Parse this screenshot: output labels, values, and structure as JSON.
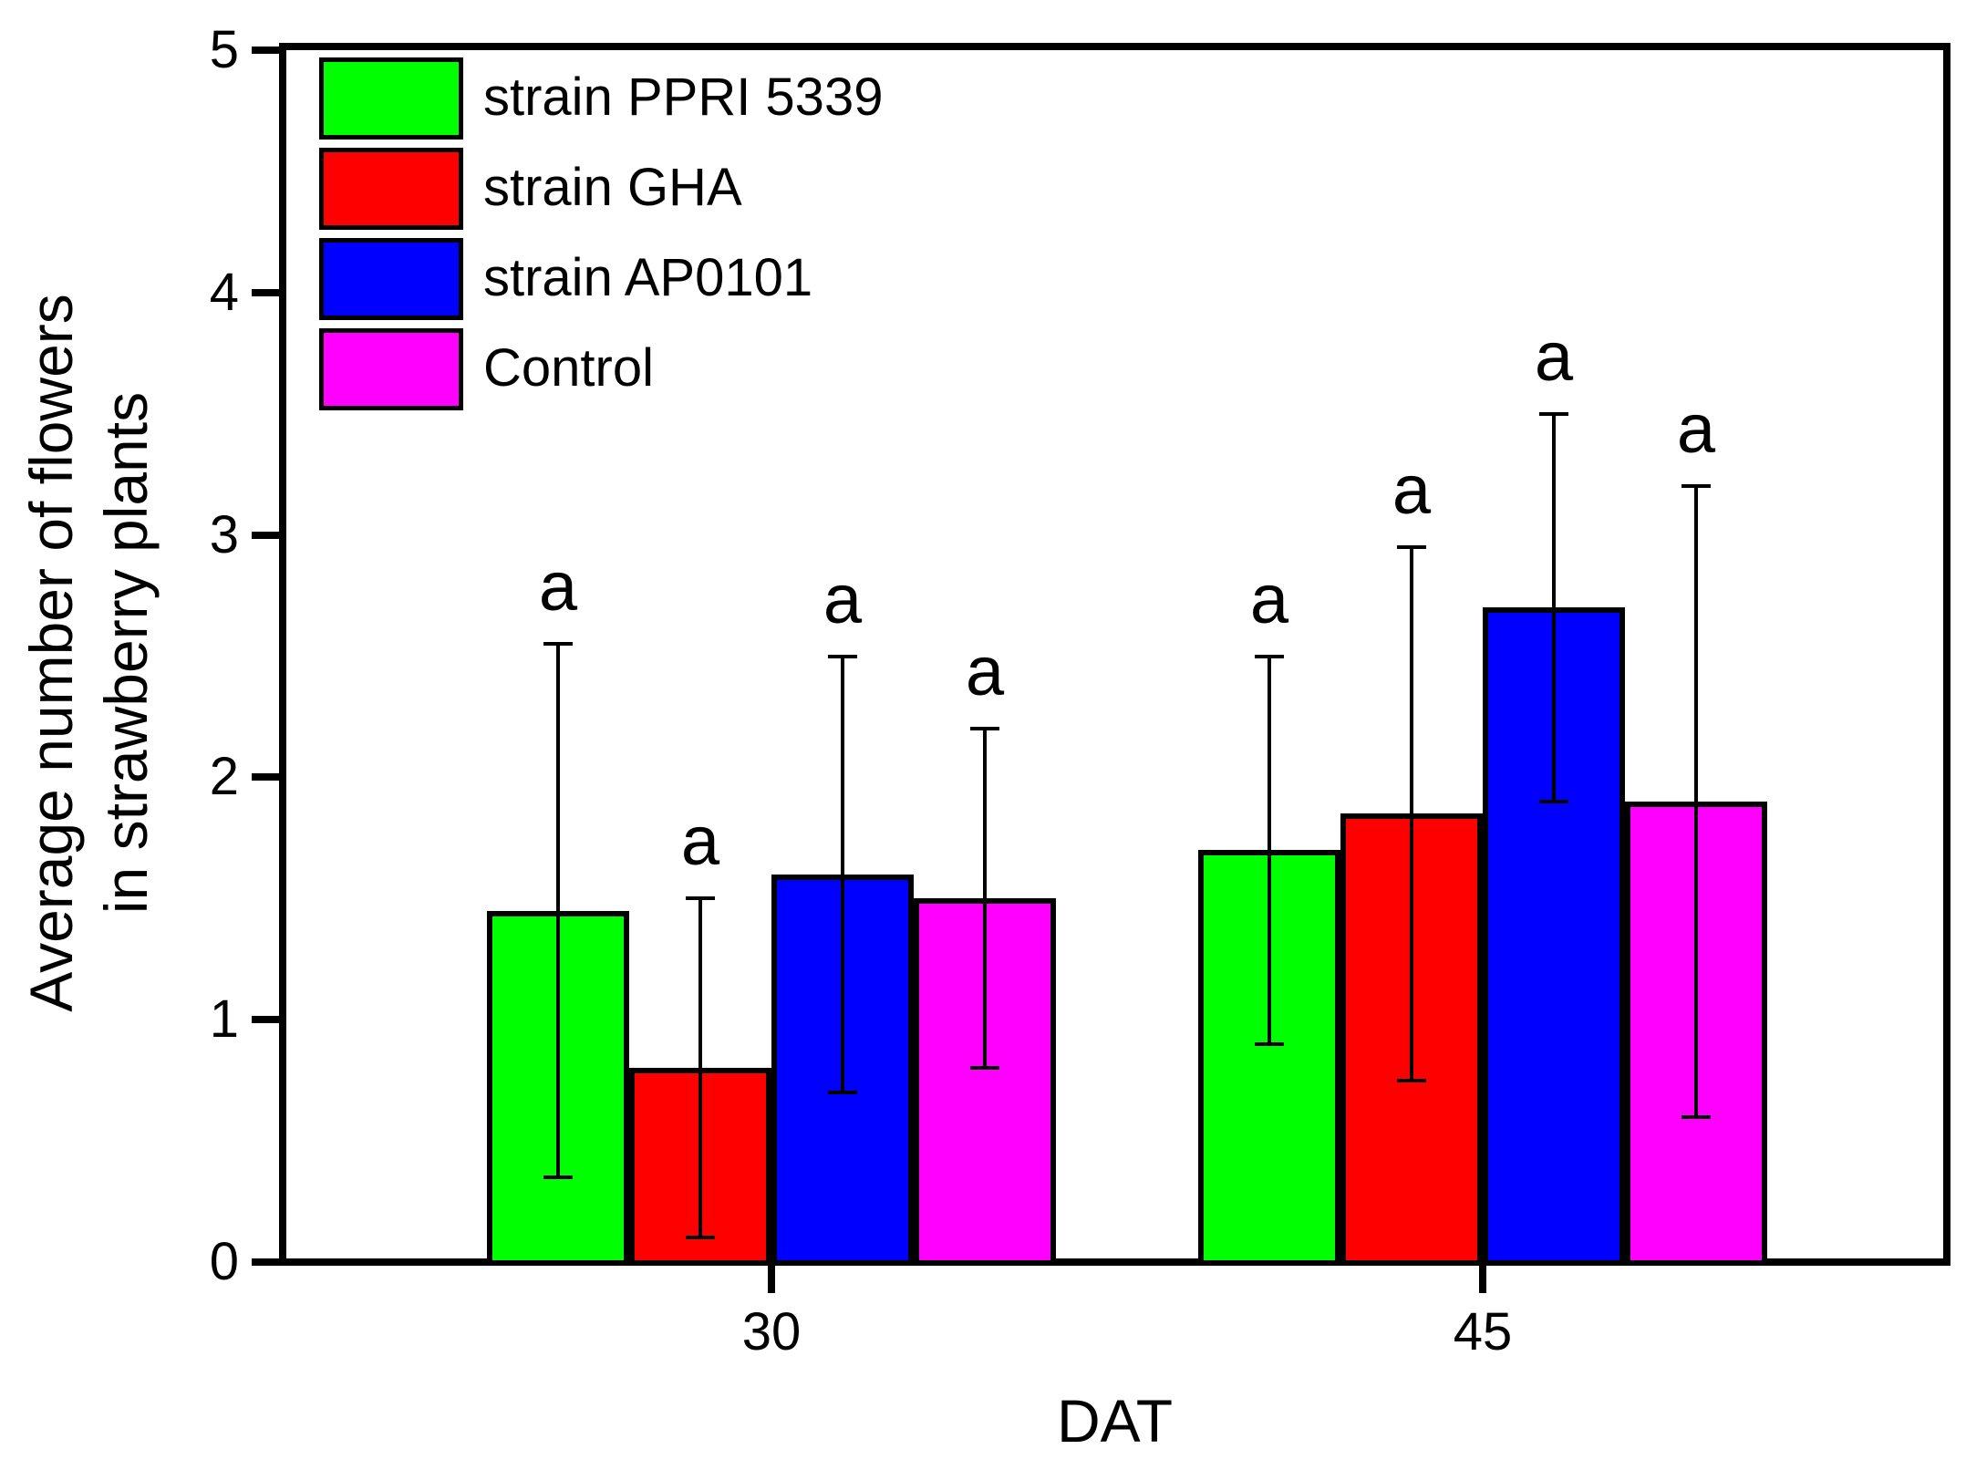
{
  "figure": {
    "background_color": "#ffffff",
    "axes": {
      "y": {
        "label_line1": "Average number of flowers",
        "label_line2": "in strawberry plants",
        "tick_labels": [
          "0",
          "1",
          "2",
          "3",
          "4",
          "5"
        ],
        "min": 0,
        "max": 5
      },
      "x": {
        "label": "DAT",
        "tick_labels": [
          "30",
          "45"
        ]
      }
    },
    "significance_letter": "a"
  },
  "chart_data": {
    "type": "bar",
    "title": "",
    "xlabel": "DAT",
    "ylabel": "Average number of flowers in strawberry plants",
    "ylim": [
      0,
      5
    ],
    "yticks": [
      0,
      1,
      2,
      3,
      4,
      5
    ],
    "grid": false,
    "legend_position": "top-left",
    "categories": [
      "30",
      "45"
    ],
    "series": [
      {
        "name": "strain PPRI 5339",
        "color": "#00ff00",
        "values": [
          1.45,
          1.7
        ],
        "error_bar_lower": [
          0.35,
          0.9
        ],
        "error_bar_upper": [
          2.55,
          2.5
        ],
        "bar_labels": [
          "a",
          "a"
        ]
      },
      {
        "name": "strain GHA",
        "color": "#ff0000",
        "values": [
          0.8,
          1.85
        ],
        "error_bar_lower": [
          0.1,
          0.75
        ],
        "error_bar_upper": [
          1.5,
          2.95
        ],
        "bar_labels": [
          "a",
          "a"
        ]
      },
      {
        "name": "strain AP0101",
        "color": "#0000ff",
        "values": [
          1.6,
          2.7
        ],
        "error_bar_lower": [
          0.7,
          1.9
        ],
        "error_bar_upper": [
          2.5,
          3.5
        ],
        "bar_labels": [
          "a",
          "a"
        ]
      },
      {
        "name": "Control",
        "color": "#ff00ff",
        "values": [
          1.5,
          1.9
        ],
        "error_bar_lower": [
          0.8,
          0.6
        ],
        "error_bar_upper": [
          2.2,
          3.2
        ],
        "bar_labels": [
          "a",
          "a"
        ]
      }
    ]
  }
}
